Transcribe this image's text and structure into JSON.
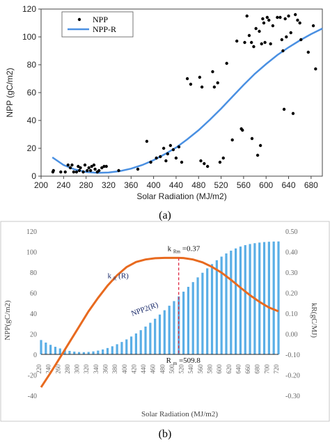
{
  "chart_data": [
    {
      "panel_label": "(a)",
      "type": "scatter",
      "xlabel": "Solar Radiation (MJ/m2)",
      "ylabel": "NPP (gC/m2)",
      "xlim": [
        200,
        700
      ],
      "ylim": [
        0,
        120
      ],
      "x_ticks": [
        200,
        240,
        280,
        320,
        360,
        400,
        440,
        480,
        520,
        560,
        600,
        640,
        680
      ],
      "y_ticks": [
        0,
        20,
        40,
        60,
        80,
        100,
        120
      ],
      "legend_position": "top-left",
      "series": [
        {
          "name": "NPP",
          "type": "scatter",
          "color": "#000000",
          "points": [
            [
              221,
              3
            ],
            [
              222,
              4
            ],
            [
              235,
              3
            ],
            [
              243,
              3
            ],
            [
              248,
              8
            ],
            [
              252,
              6
            ],
            [
              255,
              8
            ],
            [
              258,
              3
            ],
            [
              263,
              3
            ],
            [
              266,
              7
            ],
            [
              268,
              4
            ],
            [
              270,
              6
            ],
            [
              275,
              3
            ],
            [
              278,
              8
            ],
            [
              282,
              4
            ],
            [
              285,
              6
            ],
            [
              288,
              4
            ],
            [
              290,
              7
            ],
            [
              294,
              8
            ],
            [
              296,
              5
            ],
            [
              300,
              3
            ],
            [
              303,
              4
            ],
            [
              308,
              6
            ],
            [
              312,
              7
            ],
            [
              316,
              7
            ],
            [
              338,
              4
            ],
            [
              372,
              5
            ],
            [
              388,
              25
            ],
            [
              395,
              10
            ],
            [
              405,
              13
            ],
            [
              412,
              14
            ],
            [
              418,
              20
            ],
            [
              422,
              11
            ],
            [
              425,
              16
            ],
            [
              430,
              22
            ],
            [
              435,
              19
            ],
            [
              440,
              13
            ],
            [
              445,
              21
            ],
            [
              450,
              10
            ],
            [
              460,
              70
            ],
            [
              466,
              66
            ],
            [
              482,
              71
            ],
            [
              484,
              11
            ],
            [
              486,
              64
            ],
            [
              490,
              9
            ],
            [
              496,
              7
            ],
            [
              505,
              75
            ],
            [
              508,
              64
            ],
            [
              514,
              67
            ],
            [
              518,
              10
            ],
            [
              524,
              13
            ],
            [
              530,
              81
            ],
            [
              540,
              26
            ],
            [
              548,
              97
            ],
            [
              556,
              34
            ],
            [
              558,
              33
            ],
            [
              562,
              96
            ],
            [
              566,
              115
            ],
            [
              570,
              101
            ],
            [
              574,
              96
            ],
            [
              575,
              27
            ],
            [
              578,
              93
            ],
            [
              582,
              106
            ],
            [
              585,
              15
            ],
            [
              588,
              104
            ],
            [
              590,
              22
            ],
            [
              592,
              95
            ],
            [
              594,
              113
            ],
            [
              596,
              110
            ],
            [
              598,
              96
            ],
            [
              602,
              114
            ],
            [
              605,
              112
            ],
            [
              608,
              95
            ],
            [
              612,
              108
            ],
            [
              620,
              114
            ],
            [
              625,
              114
            ],
            [
              628,
              98
            ],
            [
              630,
              90
            ],
            [
              632,
              48
            ],
            [
              634,
              113
            ],
            [
              636,
              100
            ],
            [
              640,
              115
            ],
            [
              644,
              103
            ],
            [
              648,
              45
            ],
            [
              652,
              116
            ],
            [
              656,
              112
            ],
            [
              660,
              110
            ],
            [
              662,
              98
            ],
            [
              675,
              89
            ],
            [
              684,
              108
            ],
            [
              688,
              77
            ]
          ]
        },
        {
          "name": "NPP-R",
          "type": "line",
          "color": "#4a90e2",
          "points": [
            [
              220,
              13.5
            ],
            [
              240,
              8.0
            ],
            [
              260,
              4.8
            ],
            [
              280,
              3.0
            ],
            [
              300,
              2.4
            ],
            [
              320,
              2.6
            ],
            [
              340,
              3.6
            ],
            [
              360,
              5.4
            ],
            [
              380,
              8.0
            ],
            [
              400,
              11.5
            ],
            [
              420,
              15.8
            ],
            [
              440,
              20.5
            ],
            [
              460,
              26.5
            ],
            [
              480,
              33.0
            ],
            [
              500,
              40.5
            ],
            [
              520,
              48.5
            ],
            [
              540,
              57.0
            ],
            [
              560,
              65.5
            ],
            [
              580,
              73.5
            ],
            [
              600,
              80.5
            ],
            [
              620,
              87.0
            ],
            [
              640,
              92.5
            ],
            [
              660,
              97.5
            ],
            [
              680,
              102.0
            ],
            [
              700,
              106.0
            ]
          ]
        }
      ]
    },
    {
      "panel_label": "(b)",
      "type": "bar",
      "xlabel": "Solar Radiation (MJ/m2)",
      "ylabel_left": "NPP(gC/m2)",
      "ylabel_right": "kR(gC/MJ)",
      "xlim": [
        220,
        720
      ],
      "ylim_left": [
        -40,
        120
      ],
      "ylim_right": [
        -0.3,
        0.5
      ],
      "y_ticks_left": [
        -40,
        -20,
        0,
        20,
        40,
        60,
        80,
        100,
        120
      ],
      "y_ticks_right": [
        -0.3,
        -0.2,
        -0.1,
        0.0,
        0.1,
        0.2,
        0.3,
        0.4,
        0.5
      ],
      "y_tick_labels_right": [
        "-0.30",
        "-0.20",
        "-0.10",
        "0.00",
        "0.10",
        "0.20",
        "0.30",
        "0.40",
        "0.50"
      ],
      "x_ticks": [
        220,
        240,
        260,
        280,
        300,
        320,
        340,
        360,
        380,
        400,
        420,
        440,
        460,
        480,
        500,
        520,
        540,
        560,
        580,
        600,
        620,
        640,
        660,
        680,
        700,
        720
      ],
      "bar_series": {
        "name": "NPP2(R)",
        "color": "#5aaee6",
        "x": [
          220,
          230,
          240,
          250,
          260,
          270,
          280,
          290,
          300,
          310,
          320,
          330,
          340,
          350,
          360,
          370,
          380,
          390,
          400,
          410,
          420,
          430,
          440,
          450,
          460,
          470,
          480,
          490,
          500,
          510,
          520,
          530,
          540,
          550,
          560,
          570,
          580,
          590,
          600,
          610,
          620,
          630,
          640,
          650,
          660,
          670,
          680,
          690,
          700,
          710,
          720
        ],
        "values": [
          14.0,
          11.5,
          9.3,
          7.4,
          5.8,
          4.4,
          3.4,
          2.7,
          2.3,
          2.2,
          2.4,
          2.9,
          3.7,
          4.8,
          6.2,
          7.9,
          9.9,
          12.1,
          14.6,
          17.4,
          20.4,
          23.6,
          27.1,
          30.8,
          34.7,
          38.8,
          43.0,
          47.4,
          51.9,
          56.5,
          61.1,
          65.8,
          70.4,
          75.0,
          79.5,
          83.8,
          87.9,
          91.7,
          95.2,
          98.3,
          101.0,
          103.2,
          105.0,
          106.4,
          107.5,
          108.3,
          108.9,
          109.4,
          109.7,
          109.9,
          110.0
        ]
      },
      "line_series": {
        "name": "kR(R)",
        "color": "#e86a1f",
        "axis": "right",
        "points": [
          [
            220,
            -0.26
          ],
          [
            240,
            -0.19
          ],
          [
            260,
            -0.115
          ],
          [
            280,
            -0.04
          ],
          [
            300,
            0.035
          ],
          [
            320,
            0.11
          ],
          [
            340,
            0.175
          ],
          [
            360,
            0.235
          ],
          [
            380,
            0.285
          ],
          [
            400,
            0.325
          ],
          [
            420,
            0.35
          ],
          [
            440,
            0.362
          ],
          [
            460,
            0.368
          ],
          [
            480,
            0.37
          ],
          [
            500,
            0.37
          ],
          [
            510,
            0.37
          ],
          [
            520,
            0.369
          ],
          [
            540,
            0.362
          ],
          [
            560,
            0.348
          ],
          [
            580,
            0.326
          ],
          [
            600,
            0.298
          ],
          [
            620,
            0.263
          ],
          [
            640,
            0.225
          ],
          [
            660,
            0.188
          ],
          [
            680,
            0.156
          ],
          [
            700,
            0.128
          ],
          [
            720,
            0.11
          ]
        ]
      },
      "annotations": {
        "rm_label": "R",
        "rm_sub": "m",
        "rm_value": "=509.8",
        "rm_x": 509.8,
        "krm_label": "k",
        "krm_sub": "Rm",
        "krm_value": "=0.37",
        "kr_curve_label": "k",
        "kr_curve_sub": "R",
        "kr_curve_suffix": "(R)",
        "npp2_label": "NPP2(R)",
        "kr_label_pos": [
          470,
          0.285
        ],
        "npp2_label_pos": [
          500,
          0.1
        ],
        "guide_line_color": "#e0304a"
      }
    }
  ]
}
